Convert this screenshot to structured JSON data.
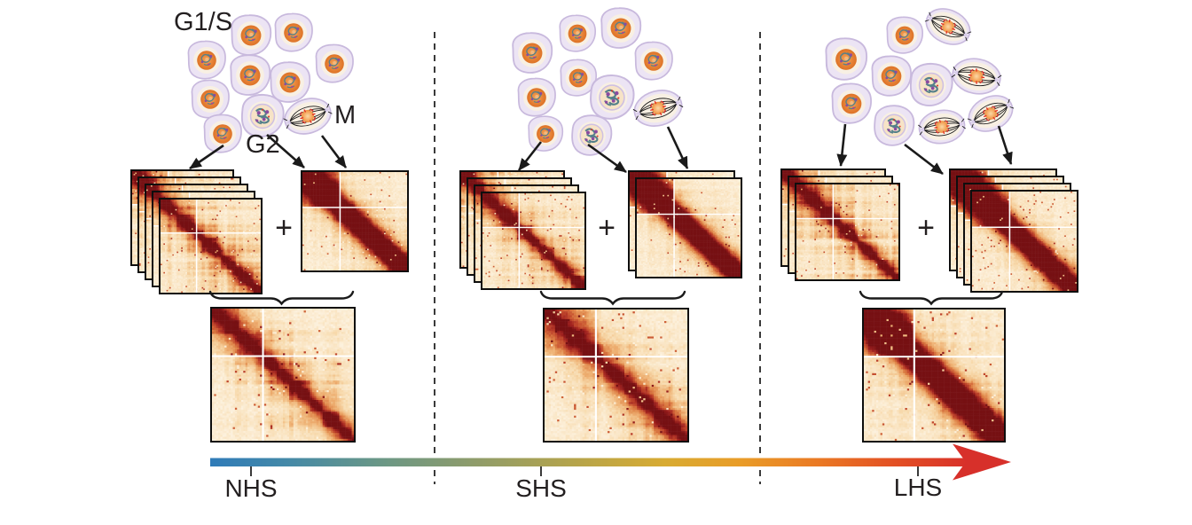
{
  "labels": {
    "g1s": "G1/S",
    "g2": "G2",
    "m": "M",
    "plus": "+"
  },
  "axis": {
    "labels": [
      "NHS",
      "SHS",
      "LHS"
    ]
  },
  "panels": [
    {
      "name": "NHS",
      "interphase_layers": 5,
      "mitotic_layers": 1,
      "cell_counts": {
        "interphase": 8,
        "g2": 1,
        "mitotic": 1
      }
    },
    {
      "name": "SHS",
      "interphase_layers": 4,
      "mitotic_layers": 2,
      "cell_counts": {
        "interphase": 7,
        "g2": 2,
        "mitotic": 1
      }
    },
    {
      "name": "LHS",
      "interphase_layers": 3,
      "mitotic_layers": 4,
      "cell_counts": {
        "interphase": 4,
        "g2": 2,
        "mitotic": 4
      }
    }
  ],
  "colors": {
    "background": "#ffffff",
    "text": "#231f20",
    "divider": "#3a3a3a",
    "arrow": "#1a1a1a",
    "matrix_border": "#0e0e0e",
    "arrowhead": "#d7302a",
    "gradient_stops": [
      [
        0.0,
        "#2f7bb8"
      ],
      [
        0.1,
        "#4489a8"
      ],
      [
        0.22,
        "#699787"
      ],
      [
        0.35,
        "#8f9c6a"
      ],
      [
        0.48,
        "#b5a44b"
      ],
      [
        0.6,
        "#d8ab32"
      ],
      [
        0.7,
        "#e99c28"
      ],
      [
        0.8,
        "#ea7a24"
      ],
      [
        0.9,
        "#e35124"
      ],
      [
        1.0,
        "#d8302a"
      ]
    ],
    "heatmap_colormap": [
      "#fdf3e1",
      "#f7d9ab",
      "#eeb072",
      "#dd7f44",
      "#c2482c",
      "#9e201e",
      "#761013"
    ],
    "cell_membrane": "#c8b9dd",
    "cell_body": "#ece4f4",
    "cell_cytoplasm": "#f8f0e3",
    "nucleus_orange": "#dd7226",
    "chromatin_teal": "#54808a",
    "chromosome_purple": "#8a4ba0",
    "spindle": "#1a1a1a",
    "metaphase_red": "#e23127"
  }
}
